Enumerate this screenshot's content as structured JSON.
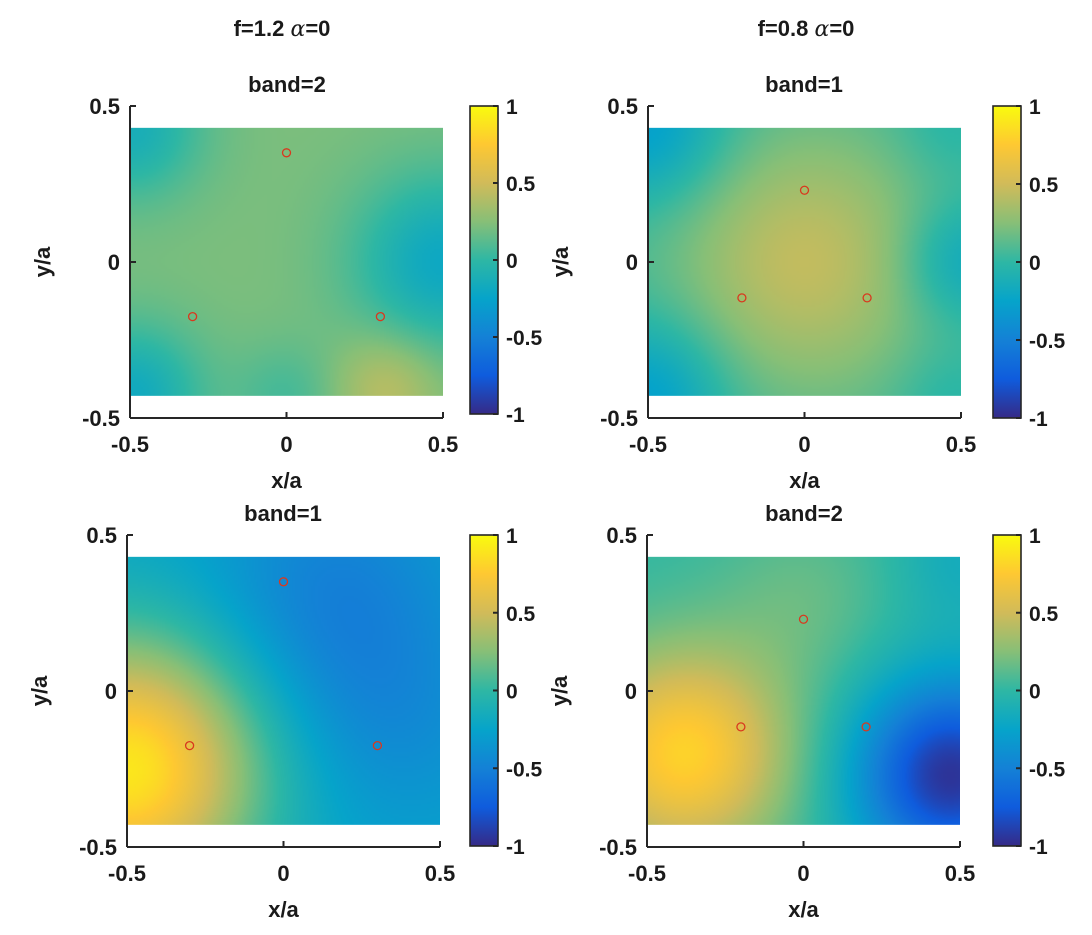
{
  "colors": {
    "parula": [
      "#352a87",
      "#0f5cdd",
      "#1481d6",
      "#06a4ca",
      "#2eb7a4",
      "#87bf77",
      "#d1bb59",
      "#fec832",
      "#f9fb0e"
    ],
    "marker": "#d9381e",
    "axis": "#262626"
  },
  "column_titles": [
    {
      "prefix": "f=1.2",
      "symbol": "α",
      "suffix": "=0"
    },
    {
      "prefix": "f=0.8",
      "symbol": "α",
      "suffix": "=0"
    }
  ],
  "chart_data": [
    {
      "type": "heatmap",
      "title": "band=2",
      "xlabel": "x/a",
      "ylabel": "y/a",
      "xlim": [
        -0.5,
        0.5
      ],
      "ylim": [
        -0.5,
        0.5
      ],
      "xticks": [
        "-0.5",
        "0",
        "0.5"
      ],
      "yticks": [
        "-0.5",
        "0",
        "0.5"
      ],
      "field_extent": {
        "x": [
          -0.5,
          0.5
        ],
        "y": [
          -0.43,
          0.43
        ]
      },
      "clim": [
        -1,
        1
      ],
      "colorbar_ticks": [
        "-1",
        "-0.5",
        "0",
        "0.5",
        "1"
      ],
      "markers": [
        {
          "x": 0.0,
          "y": 0.35
        },
        {
          "x": -0.3,
          "y": -0.175
        },
        {
          "x": 0.3,
          "y": -0.175
        }
      ],
      "field_sources": [
        {
          "x": 0.5,
          "y": 0.0,
          "amp": -0.42,
          "w": 0.2
        },
        {
          "x": -0.5,
          "y": 0.43,
          "amp": -0.35,
          "w": 0.16
        },
        {
          "x": -0.5,
          "y": -0.43,
          "amp": -0.4,
          "w": 0.16
        },
        {
          "x": 0.0,
          "y": -0.43,
          "amp": -0.15,
          "w": 0.12
        },
        {
          "x": 0.32,
          "y": -0.4,
          "amp": 0.22,
          "w": 0.12
        }
      ],
      "field_base": 0.22
    },
    {
      "type": "heatmap",
      "title": "band=1",
      "xlabel": "x/a",
      "ylabel": "y/a",
      "xlim": [
        -0.5,
        0.5
      ],
      "ylim": [
        -0.5,
        0.5
      ],
      "xticks": [
        "-0.5",
        "0",
        "0.5"
      ],
      "yticks": [
        "-0.5",
        "0",
        "0.5"
      ],
      "field_extent": {
        "x": [
          -0.5,
          0.5
        ],
        "y": [
          -0.43,
          0.43
        ]
      },
      "clim": [
        -1,
        1
      ],
      "colorbar_ticks": [
        "-1",
        "-0.5",
        "0",
        "0.5",
        "1"
      ],
      "markers": [
        {
          "x": 0.0,
          "y": 0.23
        },
        {
          "x": -0.2,
          "y": -0.115
        },
        {
          "x": 0.2,
          "y": -0.115
        }
      ],
      "field_sources": [
        {
          "x": 0.0,
          "y": 0.0,
          "amp": 0.4,
          "w": 0.3
        },
        {
          "x": 0.5,
          "y": 0.0,
          "amp": -0.28,
          "w": 0.14
        },
        {
          "x": -0.5,
          "y": 0.43,
          "amp": -0.35,
          "w": 0.18
        },
        {
          "x": -0.5,
          "y": -0.43,
          "amp": -0.35,
          "w": 0.18
        },
        {
          "x": 0.45,
          "y": 0.43,
          "amp": -0.1,
          "w": 0.12
        },
        {
          "x": 0.45,
          "y": -0.43,
          "amp": -0.1,
          "w": 0.12
        }
      ],
      "field_base": 0.05
    },
    {
      "type": "heatmap",
      "title": "band=1",
      "xlabel": "x/a",
      "ylabel": "y/a",
      "xlim": [
        -0.5,
        0.5
      ],
      "ylim": [
        -0.5,
        0.5
      ],
      "xticks": [
        "-0.5",
        "0",
        "0.5"
      ],
      "yticks": [
        "-0.5",
        "0",
        "0.5"
      ],
      "field_extent": {
        "x": [
          -0.5,
          0.5
        ],
        "y": [
          -0.43,
          0.43
        ]
      },
      "clim": [
        -1,
        1
      ],
      "colorbar_ticks": [
        "-1",
        "-0.5",
        "0",
        "0.5",
        "1"
      ],
      "markers": [
        {
          "x": 0.0,
          "y": 0.35
        },
        {
          "x": -0.3,
          "y": -0.175
        },
        {
          "x": 0.3,
          "y": -0.175
        }
      ],
      "field_sources": [
        {
          "x": -0.5,
          "y": -0.25,
          "amp": 1.15,
          "w": 0.3
        },
        {
          "x": 0.15,
          "y": 0.3,
          "amp": -0.25,
          "w": 0.28
        },
        {
          "x": 0.35,
          "y": -0.1,
          "amp": -0.15,
          "w": 0.25
        }
      ],
      "field_base": -0.25
    },
    {
      "type": "heatmap",
      "title": "band=2",
      "xlabel": "x/a",
      "ylabel": "y/a",
      "xlim": [
        -0.5,
        0.5
      ],
      "ylim": [
        -0.5,
        0.5
      ],
      "xticks": [
        "-0.5",
        "0",
        "0.5"
      ],
      "yticks": [
        "-0.5",
        "0",
        "0.5"
      ],
      "field_extent": {
        "x": [
          -0.5,
          0.5
        ],
        "y": [
          -0.43,
          0.43
        ]
      },
      "clim": [
        -1,
        1
      ],
      "colorbar_ticks": [
        "-1",
        "-0.5",
        "0",
        "0.5",
        "1"
      ],
      "markers": [
        {
          "x": 0.0,
          "y": 0.23
        },
        {
          "x": -0.2,
          "y": -0.115
        },
        {
          "x": 0.2,
          "y": -0.115
        }
      ],
      "field_sources": [
        {
          "x": -0.38,
          "y": -0.2,
          "amp": 0.8,
          "w": 0.24
        },
        {
          "x": 0.47,
          "y": -0.27,
          "amp": -0.95,
          "w": 0.22
        },
        {
          "x": 0.0,
          "y": 0.3,
          "amp": 0.15,
          "w": 0.2
        },
        {
          "x": 0.5,
          "y": 0.43,
          "amp": -0.15,
          "w": 0.15
        }
      ],
      "field_base": 0.0
    }
  ]
}
